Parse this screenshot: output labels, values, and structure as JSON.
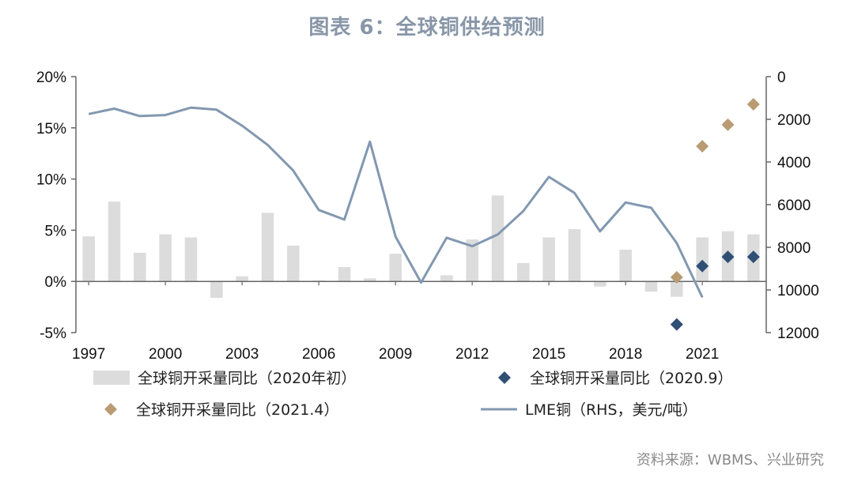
{
  "chart_data": {
    "type": "bar",
    "title": "图表 6：全球铜供给预测",
    "x": [
      1997,
      1998,
      1999,
      2000,
      2001,
      2002,
      2003,
      2004,
      2005,
      2006,
      2007,
      2008,
      2009,
      2010,
      2011,
      2012,
      2013,
      2014,
      2015,
      2016,
      2017,
      2018,
      2019,
      2020,
      2021,
      2022,
      2023
    ],
    "x_tick_labels": [
      "1997",
      "2000",
      "2003",
      "2006",
      "2009",
      "2012",
      "2015",
      "2018",
      "2021"
    ],
    "y_left": {
      "ticks": [
        "20%",
        "15%",
        "10%",
        "5%",
        "0%",
        "-5%"
      ],
      "lim": [
        -5,
        20
      ]
    },
    "y_right": {
      "ticks": [
        "0",
        "2000",
        "4000",
        "6000",
        "8000",
        "10000",
        "12000"
      ],
      "lim": [
        12000,
        0
      ],
      "inverted": true
    },
    "series": [
      {
        "name": "全球铜开采量同比（2020年初）",
        "type": "bar",
        "axis": "left",
        "color": "#dcdcdc",
        "values": [
          4.4,
          7.8,
          2.8,
          4.6,
          4.3,
          -1.6,
          0.5,
          6.7,
          3.5,
          0.1,
          1.4,
          0.3,
          2.7,
          0.0,
          0.6,
          4.1,
          8.4,
          1.8,
          4.3,
          5.1,
          -0.5,
          3.1,
          -1.0,
          -1.5,
          4.3,
          4.9,
          4.6
        ]
      },
      {
        "name": "全球铜开采量同比（2020.9）",
        "type": "scatter",
        "axis": "left",
        "color": "#2f4f75",
        "x": [
          2020,
          2021,
          2022,
          2023
        ],
        "values": [
          -4.2,
          1.5,
          2.4,
          2.4
        ]
      },
      {
        "name": "全球铜开采量同比（2021.4）",
        "type": "scatter",
        "axis": "left",
        "color": "#b99b74",
        "x": [
          2020,
          2021,
          2022,
          2023
        ],
        "values": [
          0.4,
          13.2,
          15.3,
          17.3
        ]
      },
      {
        "name": "LME铜（RHS，美元/吨）",
        "type": "line",
        "axis": "right",
        "color": "#8298b0",
        "x": [
          1997,
          1998,
          1999,
          2000,
          2001,
          2002,
          2003,
          2004,
          2005,
          2006,
          2007,
          2008,
          2009,
          2010,
          2011,
          2012,
          2013,
          2014,
          2015,
          2016,
          2017,
          2018,
          2019,
          2020,
          2021
        ],
        "values": [
          1750,
          1500,
          1850,
          1800,
          1450,
          1550,
          2300,
          3200,
          4400,
          6250,
          6700,
          3050,
          7500,
          9650,
          7550,
          7950,
          7400,
          6300,
          4700,
          5450,
          7250,
          5900,
          6150,
          7800,
          10350
        ]
      }
    ],
    "legend_placement": "bottom",
    "source": "资料来源：WBMS、兴业研究"
  }
}
